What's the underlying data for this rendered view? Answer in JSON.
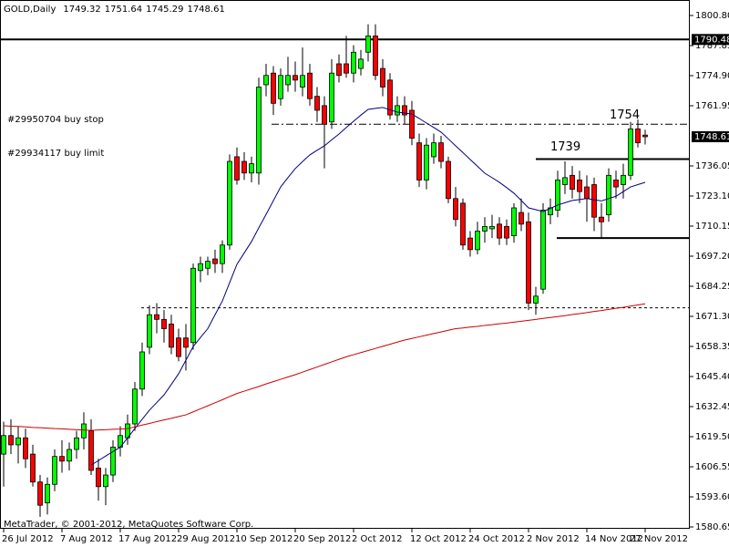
{
  "chart_data": {
    "type": "candlestick",
    "title": "GOLD,Daily",
    "ohlc": [
      1749.32,
      1751.64,
      1745.29,
      1748.61
    ],
    "copyright": "MetaTrader, © 2001-2012, MetaQuotes Software Corp.",
    "up_color": "#00ff00",
    "down_color": "#ff0000",
    "ylim": [
      1579.87,
      1807.47
    ],
    "yticks": [
      {
        "value": 1800.8,
        "label": "1800.80"
      },
      1787.85,
      {
        "value": 1774.9,
        "label": "1774.90"
      },
      1761.95,
      1736.05,
      {
        "value": 1723.1,
        "label": "1723.10"
      },
      1710.15,
      {
        "value": 1697.2,
        "label": "1697.20"
      },
      1684.25,
      {
        "value": 1671.3,
        "label": "1671.30"
      },
      1658.35,
      {
        "value": 1645.4,
        "label": "1645.40"
      },
      1632.45,
      {
        "value": 1619.5,
        "label": "1619.50"
      },
      1606.55,
      {
        "value": 1593.6,
        "label": "1593.60"
      },
      1580.65
    ],
    "categories": [
      "26 Jul 2012",
      null,
      null,
      null,
      null,
      null,
      null,
      null,
      "7 Aug 2012",
      null,
      null,
      null,
      null,
      null,
      null,
      null,
      "17 Aug 2012",
      null,
      null,
      null,
      null,
      null,
      null,
      null,
      "29 Aug 2012",
      null,
      null,
      null,
      null,
      null,
      null,
      null,
      "10 Sep 2012",
      null,
      null,
      null,
      null,
      null,
      null,
      null,
      "20 Sep 2012",
      null,
      null,
      null,
      null,
      null,
      null,
      null,
      "2 Oct 2012",
      null,
      null,
      null,
      null,
      null,
      null,
      null,
      "12 Oct 2012",
      null,
      null,
      null,
      null,
      null,
      null,
      null,
      "24 Oct 2012",
      null,
      null,
      null,
      null,
      null,
      null,
      null,
      "2 Nov 2012",
      null,
      null,
      null,
      null,
      null,
      null,
      null,
      "14 Nov 2012",
      null,
      null,
      null,
      null,
      null,
      null,
      null,
      "27 Nov 2012"
    ],
    "open": [
      1612,
      1620,
      1616,
      1619,
      1612,
      1600,
      1591,
      1599,
      1611,
      1609,
      1614,
      1619,
      1622,
      1606,
      1598,
      1603,
      1615,
      1619,
      1625,
      1640,
      1658,
      1672,
      1670,
      1668,
      1662,
      1662,
      1660,
      1691,
      1692,
      1696,
      1694,
      1702,
      1740,
      1738,
      1733,
      1733,
      1771,
      1776,
      1765,
      1771,
      1775,
      1770,
      1776,
      1766,
      1762,
      1755,
      1780,
      1780,
      1776,
      1778,
      1785,
      1792,
      1778,
      1773,
      1758,
      1762,
      1760,
      1746,
      1730,
      1740,
      1746,
      1738,
      1722,
      1720,
      1705,
      1700,
      1708,
      1709,
      1711,
      1710,
      1706,
      1716,
      1712,
      1677,
      1683,
      1715,
      1717,
      1728,
      1732,
      1730,
      1727,
      1728,
      1714,
      1715,
      1730,
      1728,
      1732,
      1752,
      1749.32
    ],
    "high": [
      1626,
      1627,
      1624,
      1623,
      1616,
      1603,
      1602,
      1614,
      1618,
      1617,
      1622,
      1630,
      1627,
      1610,
      1606,
      1618,
      1624,
      1629,
      1643,
      1660,
      1676,
      1677,
      1674,
      1672,
      1666,
      1668,
      1694,
      1697,
      1697,
      1700,
      1704,
      1741,
      1744,
      1742,
      1740,
      1774,
      1780,
      1779,
      1778,
      1783,
      1781,
      1787,
      1780,
      1770,
      1766,
      1782,
      1784,
      1792,
      1788,
      1786,
      1797,
      1797,
      1782,
      1776,
      1766,
      1766,
      1764,
      1750,
      1748,
      1750,
      1749,
      1740,
      1727,
      1722,
      1708,
      1712,
      1714,
      1715,
      1714,
      1713,
      1720,
      1722,
      1716,
      1684,
      1720,
      1722,
      1734,
      1738,
      1736,
      1734,
      1732,
      1731,
      1720,
      1735,
      1734,
      1737,
      1755,
      1756,
      1751.64
    ],
    "low": [
      1598,
      1612,
      1608,
      1606,
      1598,
      1585,
      1586,
      1596,
      1604,
      1605,
      1610,
      1614,
      1603,
      1592,
      1590,
      1600,
      1611,
      1616,
      1622,
      1637,
      1655,
      1664,
      1660,
      1655,
      1652,
      1648,
      1657,
      1686,
      1689,
      1690,
      1690,
      1700,
      1728,
      1730,
      1729,
      1728,
      1766,
      1758,
      1762,
      1768,
      1768,
      1766,
      1762,
      1755,
      1735,
      1752,
      1772,
      1774,
      1772,
      1775,
      1781,
      1773,
      1766,
      1756,
      1755,
      1754,
      1745,
      1727,
      1726,
      1737,
      1735,
      1720,
      1710,
      1700,
      1697,
      1698,
      1703,
      1705,
      1702,
      1702,
      1703,
      1708,
      1674,
      1672,
      1681,
      1711,
      1714,
      1724,
      1722,
      1720,
      1712,
      1708,
      1705,
      1712,
      1722,
      1722,
      1730,
      1744,
      1745.29
    ],
    "close": [
      1620,
      1616,
      1619,
      1610,
      1600,
      1590,
      1599,
      1611,
      1609,
      1614,
      1619,
      1625,
      1605,
      1598,
      1603,
      1615,
      1620,
      1625,
      1640,
      1656,
      1672,
      1670,
      1666,
      1658,
      1654,
      1658,
      1692,
      1694,
      1695,
      1694,
      1702,
      1738,
      1730,
      1733,
      1737,
      1770,
      1775,
      1763,
      1775,
      1775,
      1773,
      1775,
      1765,
      1760,
      1754,
      1776,
      1775,
      1776,
      1785,
      1782,
      1792,
      1775,
      1770,
      1758,
      1762,
      1758,
      1748,
      1730,
      1745,
      1746,
      1738,
      1722,
      1713,
      1702,
      1700,
      1708,
      1710,
      1710,
      1705,
      1705,
      1718,
      1711,
      1677,
      1680,
      1717,
      1718,
      1730,
      1731,
      1726,
      1725,
      1722,
      1714,
      1712,
      1732,
      1727,
      1732,
      1752,
      1746,
      1748.61
    ],
    "indicators": [
      {
        "color": "#000080",
        "values": [
          null,
          null,
          null,
          null,
          null,
          null,
          null,
          null,
          null,
          null,
          null,
          null,
          1607.3,
          1609.2,
          1611.2,
          1613.1,
          1615.0,
          1619.0,
          1623.0,
          1627.0,
          1630.9,
          1634.2,
          1637.5,
          1642.0,
          1646.6,
          1652.4,
          1658.3,
          1662.2,
          1666.0,
          1672.0,
          1677.9,
          1685.8,
          1693.7,
          1698.6,
          1703.5,
          1709.4,
          1715.2,
          1721.1,
          1727.0,
          1731.0,
          1734.9,
          1737.9,
          1740.8,
          1742.8,
          1744.7,
          1747.3,
          1749.8,
          1752.6,
          1755.3,
          1757.9,
          1760.4,
          1760.8,
          1761.2,
          1760.2,
          1759.2,
          1758.8,
          1758.4,
          1756.5,
          1754.5,
          1752.6,
          1750.6,
          1747.7,
          1744.7,
          1741.8,
          1738.8,
          1735.9,
          1732.9,
          1731.0,
          1729.0,
          1726.7,
          1724.3,
          1721.2,
          1718.0,
          1717.2,
          1716.4,
          1717.8,
          1719.2,
          1720.2,
          1721.2,
          1721.6,
          1722.0,
          1721.5,
          1721.0,
          1722.0,
          1723.0,
          1725.0,
          1727.0,
          1728.0,
          1729.0
        ]
      },
      {
        "color": "#cc0000",
        "values": [
          1624.2,
          1624.0,
          1623.9,
          1623.7,
          1623.5,
          1623.4,
          1623.2,
          1623.0,
          1622.9,
          1622.7,
          1622.5,
          1622.4,
          1622.2,
          1622.4,
          1622.5,
          1622.7,
          1622.8,
          1623.0,
          1623.7,
          1624.5,
          1625.2,
          1626.0,
          1626.7,
          1627.4,
          1628.2,
          1628.9,
          1630.2,
          1631.5,
          1632.8,
          1634.1,
          1635.4,
          1636.8,
          1638.1,
          1639.1,
          1640.1,
          1641.1,
          1642.2,
          1643.2,
          1644.2,
          1645.2,
          1646.2,
          1647.3,
          1648.4,
          1649.5,
          1650.6,
          1651.7,
          1652.8,
          1653.9,
          1654.8,
          1655.7,
          1656.6,
          1657.5,
          1658.4,
          1659.3,
          1660.2,
          1661.1,
          1661.8,
          1662.5,
          1663.2,
          1663.9,
          1664.6,
          1665.3,
          1666.0,
          1666.3,
          1666.7,
          1667.0,
          1667.4,
          1667.7,
          1668.1,
          1668.4,
          1668.8,
          1669.2,
          1669.6,
          1670.0,
          1670.4,
          1670.8,
          1671.2,
          1671.6,
          1672.1,
          1672.5,
          1672.9,
          1673.4,
          1673.8,
          1674.3,
          1674.8,
          1675.2,
          1675.7,
          1676.2,
          1676.7
        ]
      }
    ],
    "price_lines": [
      {
        "value": 1790.48
      }
    ],
    "orders": [
      {
        "label": "#29950704 buy stop",
        "price": 1754
      },
      {
        "label": "#29934117 buy limit",
        "price": 1675
      }
    ],
    "lines": [
      {
        "value": 1739
      },
      {
        "value": 1705
      }
    ]
  }
}
